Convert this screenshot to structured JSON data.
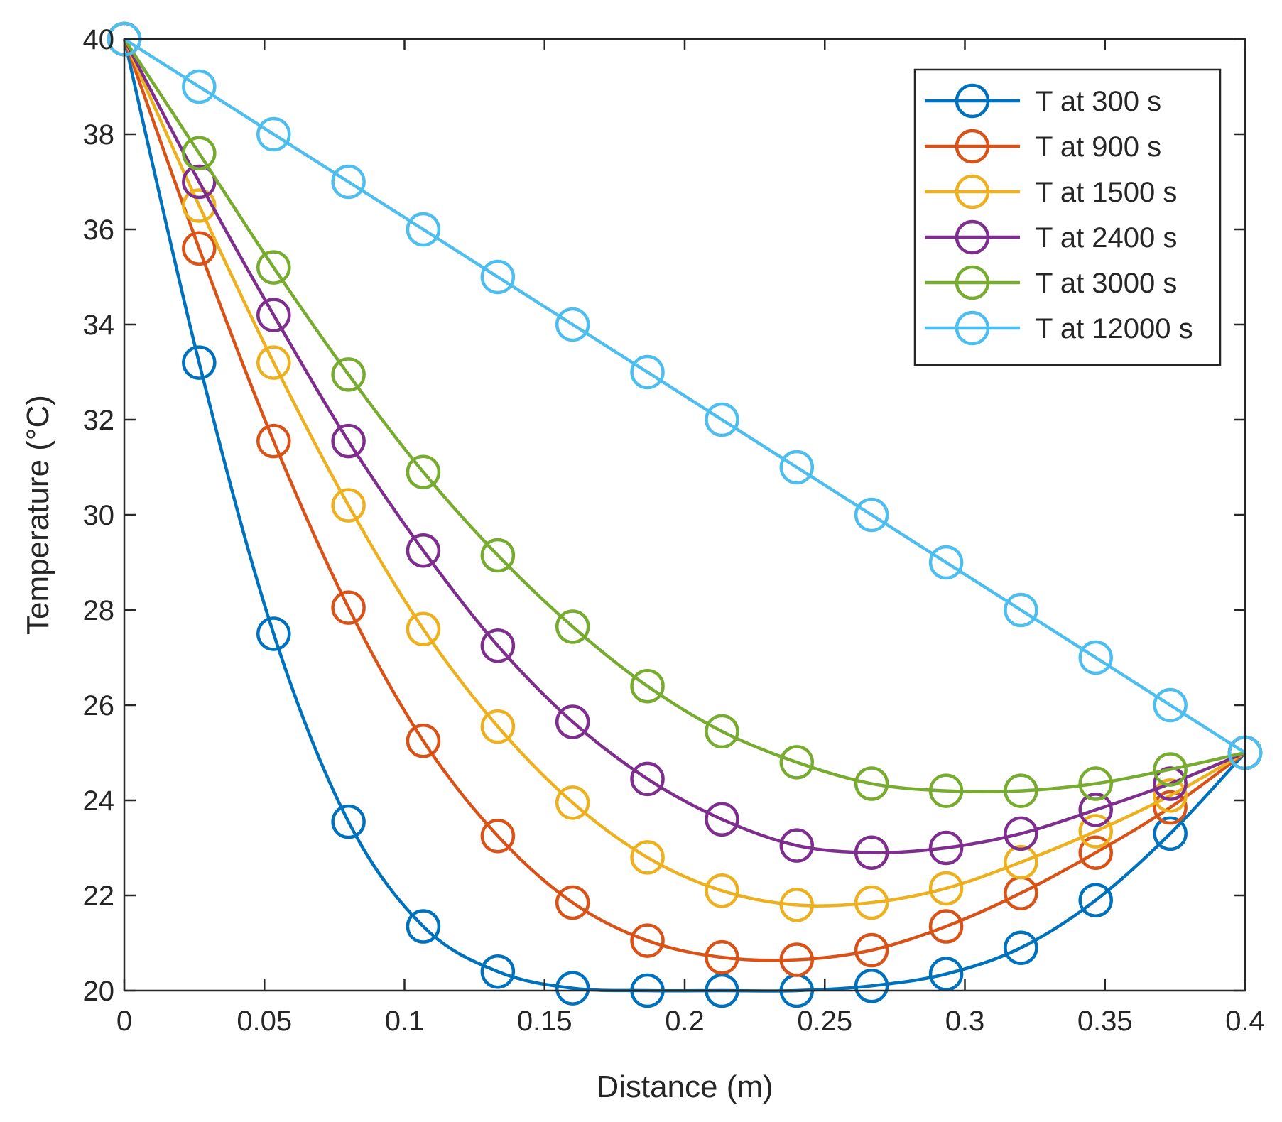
{
  "chart_data": {
    "type": "line",
    "title": "",
    "xlabel": "Distance (m)",
    "ylabel": "Temperature (°C)",
    "xlim": [
      0,
      0.4
    ],
    "ylim": [
      20,
      40
    ],
    "xticks": [
      0,
      0.05,
      0.1,
      0.15,
      0.2,
      0.25,
      0.3,
      0.35,
      0.4
    ],
    "xtick_labels": [
      "0",
      "0.05",
      "0.1",
      "0.15",
      "0.2",
      "0.25",
      "0.3",
      "0.35",
      "0.4"
    ],
    "yticks": [
      20,
      22,
      24,
      26,
      28,
      30,
      32,
      34,
      36,
      38,
      40
    ],
    "ytick_labels": [
      "20",
      "22",
      "24",
      "26",
      "28",
      "30",
      "32",
      "34",
      "36",
      "38",
      "40"
    ],
    "grid": false,
    "legend_position": "top-right",
    "x": [
      0,
      0.0267,
      0.0533,
      0.08,
      0.1067,
      0.1333,
      0.16,
      0.1867,
      0.2133,
      0.24,
      0.2667,
      0.2933,
      0.32,
      0.3467,
      0.3733,
      0.4
    ],
    "series": [
      {
        "name": "T at 300 s",
        "color": "#0072BD",
        "values": [
          40,
          33.2,
          27.5,
          23.55,
          21.35,
          20.4,
          20.05,
          20.0,
          20.0,
          20.0,
          20.1,
          20.35,
          20.9,
          21.9,
          23.3,
          25
        ]
      },
      {
        "name": "T at 900 s",
        "color": "#D95319",
        "values": [
          40,
          35.6,
          31.55,
          28.05,
          25.25,
          23.25,
          21.85,
          21.05,
          20.7,
          20.65,
          20.85,
          21.35,
          22.05,
          22.9,
          23.85,
          25
        ]
      },
      {
        "name": "T at 1500 s",
        "color": "#EDB120",
        "values": [
          40,
          36.5,
          33.2,
          30.2,
          27.6,
          25.55,
          23.95,
          22.8,
          22.1,
          21.8,
          21.85,
          22.15,
          22.7,
          23.35,
          24.1,
          25
        ]
      },
      {
        "name": "T at 2400 s",
        "color": "#7E2F8E",
        "values": [
          40,
          37.0,
          34.2,
          31.55,
          29.25,
          27.25,
          25.65,
          24.45,
          23.6,
          23.05,
          22.9,
          23.0,
          23.3,
          23.8,
          24.35,
          25
        ]
      },
      {
        "name": "T  at 3000 s",
        "color": "#77AC30",
        "values": [
          40,
          37.6,
          35.2,
          32.95,
          30.9,
          29.15,
          27.65,
          26.4,
          25.45,
          24.8,
          24.35,
          24.2,
          24.2,
          24.35,
          24.65,
          25
        ]
      },
      {
        "name": "T at 12000 s",
        "color": "#4DBEEE",
        "values": [
          40,
          39,
          38,
          37,
          36,
          35,
          34,
          33,
          32,
          31,
          30,
          29,
          28,
          27,
          26,
          25
        ]
      }
    ]
  }
}
